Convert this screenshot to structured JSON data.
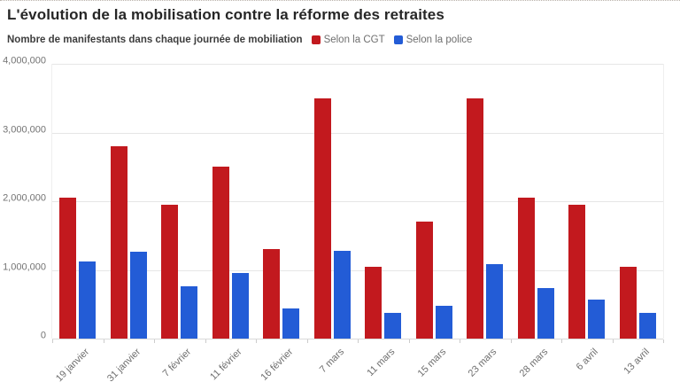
{
  "header": {
    "title": "L'évolution de la mobilisation contre la réforme des retraites",
    "subtitle": "Nombre de manifestants dans chaque journée de mobiliation"
  },
  "legend": [
    {
      "label": "Selon la CGT",
      "color": "#c2191e"
    },
    {
      "label": "Selon la police",
      "color": "#235cd6"
    }
  ],
  "colors": {
    "cgt_red": "#c2191e",
    "police_blue": "#235cd6",
    "gridline": "#e6e6e6",
    "axis_text": "#737373",
    "title_text": "#262626"
  },
  "chart_data": {
    "type": "bar",
    "title": "L'évolution de la mobilisation contre la réforme des retraites",
    "subtitle": "Nombre de manifestants dans chaque journée de mobiliation",
    "categories": [
      "19 janvier",
      "31 janvier",
      "7 février",
      "11 février",
      "16 février",
      "7 mars",
      "11 mars",
      "15 mars",
      "23 mars",
      "28 mars",
      "6 avril",
      "13 avril"
    ],
    "series": [
      {
        "name": "Selon la CGT",
        "color": "#c2191e",
        "values": [
          2050000,
          2800000,
          1950000,
          2500000,
          1300000,
          3500000,
          1050000,
          1700000,
          3500000,
          2050000,
          1950000,
          1050000
        ]
      },
      {
        "name": "Selon la police",
        "color": "#235cd6",
        "values": [
          1120000,
          1270000,
          760000,
          960000,
          440000,
          1280000,
          370000,
          480000,
          1090000,
          740000,
          570000,
          380000
        ]
      }
    ],
    "xlabel": "",
    "ylabel": "",
    "ylim": [
      0,
      4000000
    ],
    "yticks": [
      {
        "value": 0,
        "label": "0"
      },
      {
        "value": 1000000,
        "label": "1,000,000"
      },
      {
        "value": 2000000,
        "label": "2,000,000"
      },
      {
        "value": 3000000,
        "label": "3,000,000"
      },
      {
        "value": 4000000,
        "label": "4,000,000"
      }
    ],
    "grid": "horizontal",
    "legend_position": "top-right-of-subtitle"
  }
}
